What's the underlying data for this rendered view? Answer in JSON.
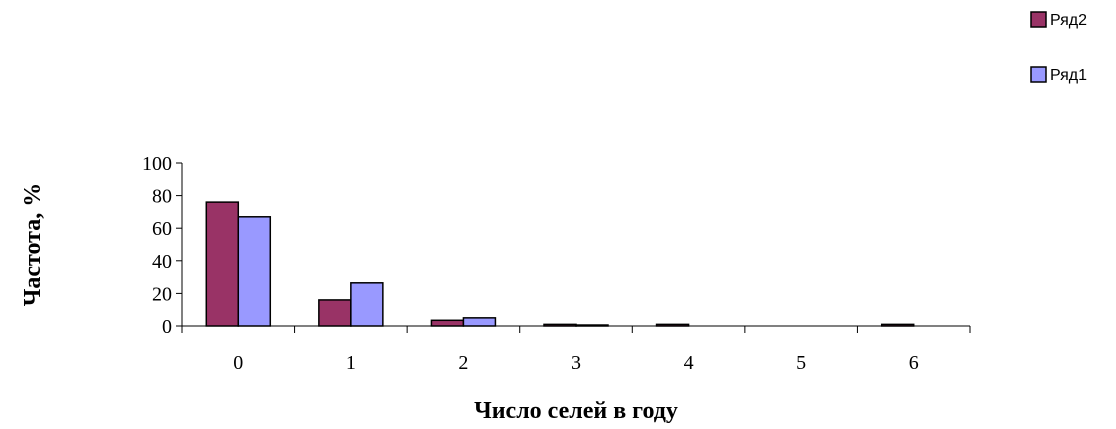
{
  "chart_data": {
    "type": "bar",
    "title": "",
    "xlabel": "Число селей в году",
    "ylabel": "Частота, %",
    "categories": [
      "0",
      "1",
      "2",
      "3",
      "4",
      "5",
      "6"
    ],
    "series": [
      {
        "name": "Ряд2",
        "color": "#993366",
        "values": [
          76,
          16,
          3.5,
          1,
          1,
          0,
          1
        ]
      },
      {
        "name": "Ряд1",
        "color": "#9999ff",
        "values": [
          67,
          26.5,
          5,
          0.6,
          0,
          0,
          0
        ]
      }
    ],
    "ylim": [
      0,
      100
    ],
    "yticks": [
      "0",
      "20",
      "40",
      "60",
      "80",
      "100"
    ],
    "grid": false,
    "legend_position": "top-right",
    "legend_order": [
      0,
      1
    ]
  }
}
